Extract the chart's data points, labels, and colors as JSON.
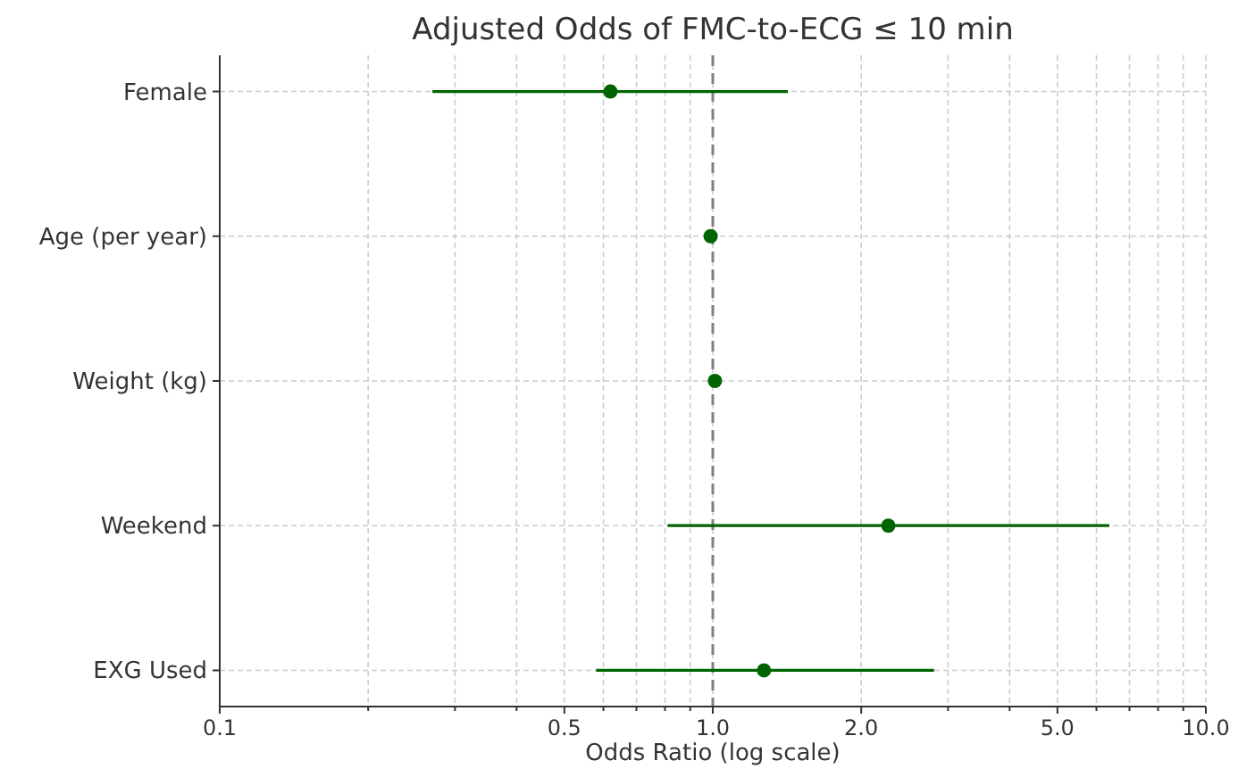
{
  "chart_data": {
    "type": "scatter",
    "orientation": "horizontal",
    "title": "Adjusted Odds of FMC-to-ECG ≤ 10 min",
    "xlabel": "Odds Ratio (log scale)",
    "categories": [
      "Female",
      "Age (per year)",
      "Weight (kg)",
      "Weekend",
      "EXG Used"
    ],
    "series": [
      {
        "color": "#006400",
        "values": [
          0.62,
          0.99,
          1.01,
          2.27,
          1.27
        ],
        "errors": [
          [
            0.27,
            1.42
          ],
          null,
          null,
          [
            0.81,
            6.37
          ],
          [
            0.58,
            2.81
          ]
        ]
      }
    ],
    "log": "x",
    "xlim": [
      0.1,
      10
    ],
    "xticks": [
      {
        "value": 0.1,
        "label": "0.1"
      },
      {
        "value": 0.2,
        "label": null
      },
      {
        "value": 0.3,
        "label": null
      },
      {
        "value": 0.4,
        "label": null
      },
      {
        "value": 0.5,
        "label": "0.5"
      },
      {
        "value": 0.6,
        "label": null
      },
      {
        "value": 0.7,
        "label": null
      },
      {
        "value": 0.8,
        "label": null
      },
      {
        "value": 0.9,
        "label": null
      },
      {
        "value": 1,
        "label": "1.0"
      },
      {
        "value": 2,
        "label": "2.0"
      },
      {
        "value": 3,
        "label": null
      },
      {
        "value": 4,
        "label": null
      },
      {
        "value": 5,
        "label": "5.0"
      },
      {
        "value": 6,
        "label": null
      },
      {
        "value": 7,
        "label": null
      },
      {
        "value": 8,
        "label": null
      },
      {
        "value": 9,
        "label": null
      },
      {
        "value": 10,
        "label": "10.0"
      }
    ],
    "ref_lines": [
      {
        "axis": "x",
        "value": 1,
        "color": "#808080",
        "line_style": "dashed"
      }
    ],
    "grid": true,
    "marker": "circle"
  }
}
